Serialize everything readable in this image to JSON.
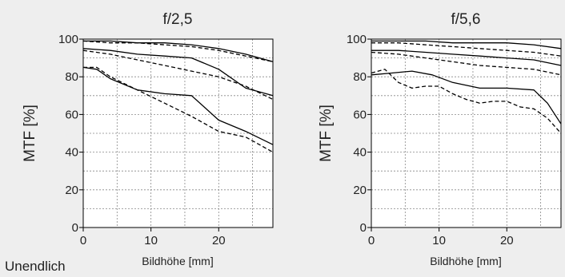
{
  "footer_label": "Unendlich",
  "colors": {
    "background": "#eeeeee",
    "plot_bg": "#ffffff",
    "line": "#000000",
    "grid": "#888888"
  },
  "chart_data": [
    {
      "type": "line",
      "title": "f/2,5",
      "xlabel": "Bildhöhe [mm]",
      "ylabel": "MTF [%]",
      "xlim": [
        0,
        28
      ],
      "ylim": [
        0,
        100
      ],
      "xticks": [
        0,
        10,
        20
      ],
      "yticks": [
        0,
        20,
        40,
        60,
        80,
        100
      ],
      "grid": true,
      "series": [
        {
          "style": "solid",
          "x": [
            0,
            4,
            8,
            12,
            16,
            20,
            24,
            28
          ],
          "y": [
            99,
            99,
            98,
            98,
            97,
            95,
            92,
            88
          ]
        },
        {
          "style": "dashed",
          "x": [
            0,
            4,
            8,
            12,
            16,
            20,
            24,
            28
          ],
          "y": [
            99,
            98,
            98,
            97,
            96,
            94,
            91,
            88
          ]
        },
        {
          "style": "solid",
          "x": [
            0,
            4,
            8,
            12,
            16,
            20,
            24,
            28
          ],
          "y": [
            95,
            94,
            92,
            91,
            90,
            84,
            74,
            70
          ]
        },
        {
          "style": "dashed",
          "x": [
            0,
            4,
            8,
            12,
            16,
            20,
            24,
            28
          ],
          "y": [
            94,
            92,
            89,
            86,
            83,
            80,
            75,
            68
          ]
        },
        {
          "style": "solid",
          "x": [
            0,
            2,
            4,
            8,
            12,
            16,
            20,
            24,
            28
          ],
          "y": [
            85,
            84,
            79,
            73,
            71,
            70,
            57,
            51,
            44
          ]
        },
        {
          "style": "dashed",
          "x": [
            0,
            2,
            4,
            8,
            12,
            16,
            20,
            24,
            28
          ],
          "y": [
            85,
            85,
            80,
            73,
            66,
            59,
            51,
            48,
            40
          ]
        }
      ]
    },
    {
      "type": "line",
      "title": "f/5,6",
      "xlabel": "Bildhöhe [mm]",
      "ylabel": "MTF [%]",
      "xlim": [
        0,
        28
      ],
      "ylim": [
        0,
        100
      ],
      "xticks": [
        0,
        10,
        20
      ],
      "yticks": [
        0,
        20,
        40,
        60,
        80,
        100
      ],
      "grid": true,
      "series": [
        {
          "style": "solid",
          "x": [
            0,
            4,
            8,
            12,
            16,
            20,
            24,
            28
          ],
          "y": [
            99,
            99,
            99,
            98,
            98,
            98,
            97,
            95
          ]
        },
        {
          "style": "dashed",
          "x": [
            0,
            4,
            8,
            12,
            16,
            20,
            24,
            28
          ],
          "y": [
            98,
            98,
            97,
            96,
            95,
            94,
            93,
            91
          ]
        },
        {
          "style": "solid",
          "x": [
            0,
            4,
            8,
            12,
            16,
            20,
            24,
            28
          ],
          "y": [
            94,
            94,
            93,
            92,
            91,
            90,
            89,
            86
          ]
        },
        {
          "style": "dashed",
          "x": [
            0,
            4,
            8,
            12,
            16,
            20,
            24,
            28
          ],
          "y": [
            93,
            92,
            90,
            88,
            86,
            85,
            84,
            81
          ]
        },
        {
          "style": "solid",
          "x": [
            0,
            3,
            6,
            9,
            12,
            16,
            20,
            24,
            26,
            28
          ],
          "y": [
            81,
            82,
            83,
            81,
            77,
            74,
            74,
            73,
            66,
            55
          ]
        },
        {
          "style": "dashed",
          "x": [
            0,
            2,
            4,
            6,
            8,
            10,
            12,
            14,
            16,
            18,
            20,
            22,
            24,
            26,
            28
          ],
          "y": [
            82,
            84,
            77,
            74,
            75,
            75,
            71,
            68,
            66,
            67,
            67,
            64,
            63,
            58,
            50
          ]
        }
      ]
    }
  ]
}
